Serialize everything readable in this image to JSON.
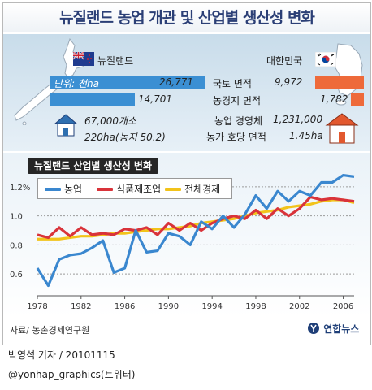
{
  "title": "뉴질랜드 농업 개관 및 산업별 생산성 변화",
  "nz": {
    "name": "뉴질랜드",
    "unit": "단위: 천ha",
    "land_area": "26,771",
    "farm_area": "14,701",
    "num_farms": "67,000개소",
    "per_farm": "220ha(농지 50.2)"
  },
  "kr": {
    "name": "대한민국",
    "land_area": "9,972",
    "farm_area": "1,782",
    "num_farms": "1,231,000",
    "per_farm": "1.45ha"
  },
  "rows": {
    "land": "국토 면적",
    "farm": "농경지 면적",
    "farms": "농업 경영체",
    "perfarm": "농가 호당 면적"
  },
  "chart_data": {
    "type": "line",
    "title": "뉴질랜드 산업별 생산성 변화",
    "ylim": [
      0.45,
      1.3
    ],
    "yticks": [
      0.6,
      0.8,
      1.0,
      1.2
    ],
    "ytick_labels": [
      "0.6",
      "0.8",
      "1.0",
      "1.2%"
    ],
    "xticks": [
      1978,
      1982,
      1986,
      1990,
      1994,
      1998,
      2002,
      2006
    ],
    "x": [
      1978,
      1979,
      1980,
      1981,
      1982,
      1983,
      1984,
      1985,
      1986,
      1987,
      1988,
      1989,
      1990,
      1991,
      1992,
      1993,
      1994,
      1995,
      1996,
      1997,
      1998,
      1999,
      2000,
      2001,
      2002,
      2003,
      2004,
      2005,
      2006,
      2007
    ],
    "series": [
      {
        "name": "농업",
        "color": "#3a87cf",
        "values": [
          0.64,
          0.52,
          0.7,
          0.73,
          0.74,
          0.78,
          0.83,
          0.61,
          0.64,
          0.9,
          0.75,
          0.76,
          0.88,
          0.86,
          0.8,
          0.96,
          0.91,
          1.0,
          0.92,
          1.01,
          1.14,
          1.05,
          1.17,
          1.1,
          1.17,
          1.14,
          1.23,
          1.23,
          1.28,
          1.27
        ]
      },
      {
        "name": "식품제조업",
        "color": "#d9333a",
        "values": [
          0.87,
          0.85,
          0.92,
          0.86,
          0.92,
          0.87,
          0.88,
          0.87,
          0.91,
          0.9,
          0.92,
          0.87,
          0.95,
          0.9,
          0.95,
          0.9,
          0.95,
          0.98,
          1.0,
          0.98,
          1.04,
          0.98,
          1.05,
          1.0,
          1.05,
          1.13,
          1.11,
          1.12,
          1.11,
          1.1
        ]
      },
      {
        "name": "전체경제",
        "color": "#f2c31a",
        "values": [
          0.84,
          0.84,
          0.84,
          0.85,
          0.86,
          0.86,
          0.87,
          0.88,
          0.88,
          0.89,
          0.9,
          0.91,
          0.91,
          0.92,
          0.93,
          0.95,
          0.96,
          0.97,
          0.98,
          1.0,
          1.02,
          1.03,
          1.04,
          1.06,
          1.07,
          1.08,
          1.1,
          1.11,
          1.11,
          1.09
        ]
      }
    ]
  },
  "source": "자료/ 농촌경제연구원",
  "logo_text": "연합뉴스",
  "byline": "박영석 기자 / 20101115",
  "twitter": "@yonhap_graphics(트위터)"
}
